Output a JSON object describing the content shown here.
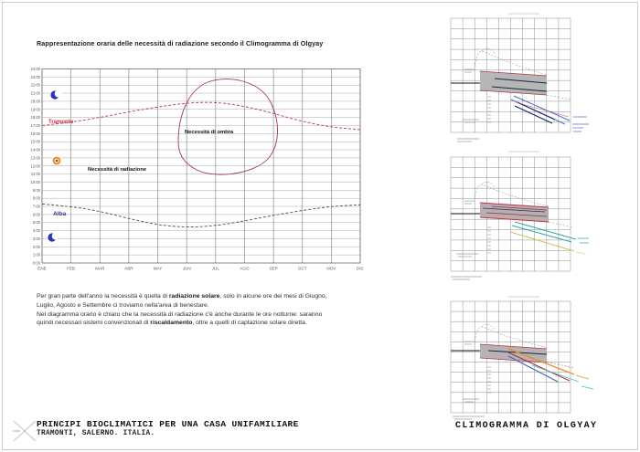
{
  "page": {
    "title": "Rappresentazione oraria delle necessità di radiazione secondo il Climogramma di Olgyay"
  },
  "main_chart": {
    "months": [
      "ENE",
      "FEB",
      "MAR",
      "ABR",
      "MAY",
      "JUN",
      "JUL",
      "AGO",
      "SEP",
      "OCT",
      "NOV",
      "DIC"
    ],
    "hour_labels": [
      "24:00",
      "23:00",
      "22:00",
      "21:00",
      "20:00",
      "19:00",
      "18:00",
      "17:00",
      "16:00",
      "15:00",
      "14:00",
      "13:00",
      "12:00",
      "11:00",
      "10:00",
      "9:00",
      "8:00",
      "7:00",
      "6:00",
      "5:00",
      "4:00",
      "3:00",
      "2:00",
      "1:00",
      "0:00"
    ],
    "labels": {
      "tramonto": "Tramonto",
      "alba": "Alba",
      "ombra": "Necessità di ombra",
      "radiazione": "Necessità di radiazione"
    },
    "icons": {
      "night": "moon-icon",
      "day": "sun-icon"
    },
    "colors": {
      "tramonto": "#b13a4c",
      "alba": "#4f4f58",
      "ombra_outline": "#a23a4a",
      "alba_label": "#2b3a8c",
      "moon": "#2834bd",
      "sun": "#f5a623"
    }
  },
  "chart_data": {
    "type": "line",
    "title": "Rappresentazione oraria delle necessità di radiazione secondo il Climogramma di Olgyay",
    "categories": [
      "ENE",
      "FEB",
      "MAR",
      "ABR",
      "MAY",
      "JUN",
      "JUL",
      "AGO",
      "SEP",
      "OCT",
      "NOV",
      "DIC"
    ],
    "ylim": [
      0,
      24
    ],
    "y_ticks": [
      "24:00",
      "23:00",
      "22:00",
      "21:00",
      "20:00",
      "19:00",
      "18:00",
      "17:00",
      "16:00",
      "15:00",
      "14:00",
      "13:00",
      "12:00",
      "11:00",
      "10:00",
      "9:00",
      "8:00",
      "7:00",
      "6:00",
      "5:00",
      "4:00",
      "3:00",
      "2:00",
      "1:00",
      "0:00"
    ],
    "grid": true,
    "legend_position": "none",
    "series": [
      {
        "name": "Tramonto",
        "style": "dashed",
        "color": "#b13a4c",
        "values": [
          17.0,
          17.4,
          18.0,
          18.7,
          19.3,
          19.8,
          19.9,
          19.4,
          18.5,
          17.5,
          16.8,
          16.5
        ]
      },
      {
        "name": "Alba",
        "style": "dashed",
        "color": "#4f4f58",
        "values": [
          7.3,
          7.0,
          6.4,
          5.5,
          4.7,
          4.4,
          4.6,
          5.2,
          5.9,
          6.5,
          7.0,
          7.2
        ]
      }
    ],
    "annotations": [
      {
        "label": "Necessità di ombra",
        "region": "maggio-settembre, ore 11:00-22:30 (area chiusa rossa)"
      },
      {
        "label": "Necessità di radiazione",
        "region": "resto del diagramma"
      }
    ]
  },
  "body": {
    "l1a": "Per gran parte dell'anno la necessità è quella di ",
    "l1b": "radiazione solare",
    "l1c": ", solo in alcune ore dei mesi di Giugno,",
    "l2a": "Luglio, Agosto e Settembre ci troviamo nella'area di benestare.",
    "l3a": "Nel diagramma orario è chiaro che la necessità di radiazione c'è anche durante le ore notturne: saranno",
    "l4a": "quindi necessari sistemi convenzionali di ",
    "l4b": "riscaldamento",
    "l4c": ", oltre a quelli di captazione solare diretta.",
    "paragraphs": [
      "Per gran parte dell'anno la necessità è quella di radiazione solare, solo in alcune ore dei mesi di Giugno, Luglio, Agosto e Settembre ci troviamo nella'area di benestare.",
      "Nel diagramma orario è chiaro che la necessità di radiazione c'è anche durante le ore notturne: saranno quindi necessari sistemi convenzionali di riscaldamento, oltre a quelli di captazione solare diretta."
    ]
  },
  "right_panel": {
    "thumbnails": [
      "climogramma-olgyay-inverno",
      "climogramma-olgyay-mezza-stagione",
      "climogramma-olgyay-estate"
    ]
  },
  "footer": {
    "project_title": "PRINCIPI BIOCLIMATICI PER UNA CASA UNIFAMILIARE",
    "project_subtitle": "TRAMONTI, SALERNO. ITALIA.",
    "right_title": "CLIMOGRAMMA DI OLGYAY"
  }
}
